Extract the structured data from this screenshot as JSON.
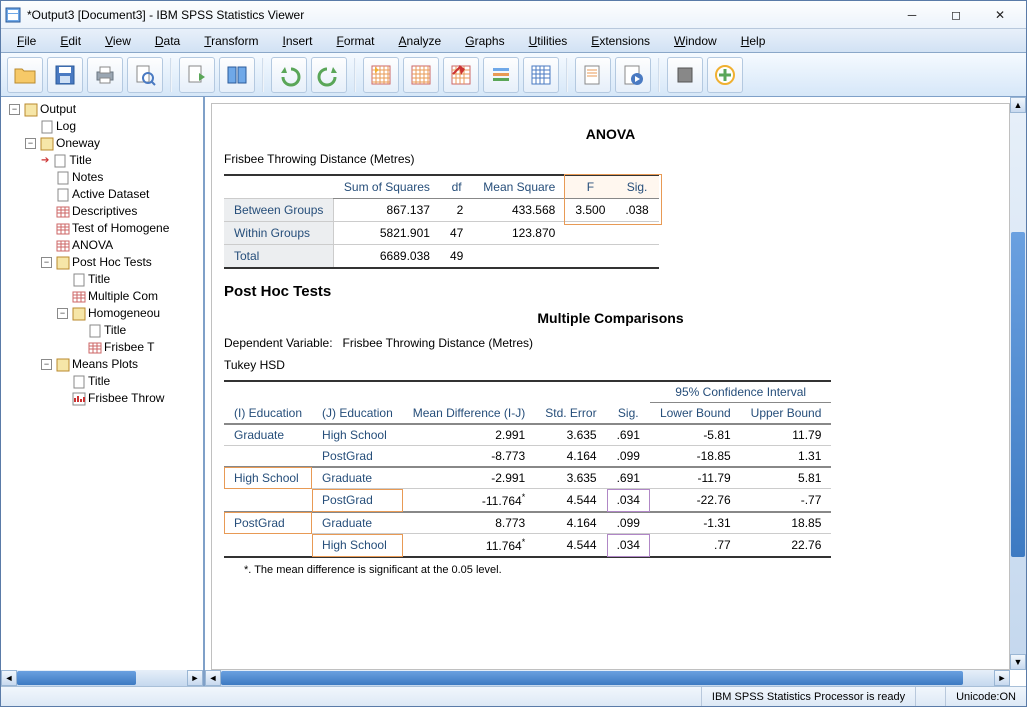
{
  "window": {
    "title": "*Output3 [Document3] - IBM SPSS Statistics Viewer"
  },
  "menus": [
    "File",
    "Edit",
    "View",
    "Data",
    "Transform",
    "Insert",
    "Format",
    "Analyze",
    "Graphs",
    "Utilities",
    "Extensions",
    "Window",
    "Help"
  ],
  "tree": {
    "root": "Output",
    "log": "Log",
    "oneway": "Oneway",
    "title": "Title",
    "notes": "Notes",
    "active": "Active Dataset",
    "desc": "Descriptives",
    "homo": "Test of Homogene",
    "anova": "ANOVA",
    "post": "Post Hoc Tests",
    "ptitle": "Title",
    "mult": "Multiple Com",
    "hsub": "Homogeneou",
    "htitle": "Title",
    "friz": "Frisbee T",
    "means": "Means Plots",
    "mtitle": "Title",
    "mfriz": "Frisbee Throw"
  },
  "anova": {
    "heading": "ANOVA",
    "caption": "Frisbee Throwing Distance (Metres)",
    "cols": [
      "Sum of Squares",
      "df",
      "Mean Square",
      "F",
      "Sig."
    ],
    "rows": [
      {
        "label": "Between Groups",
        "ss": "867.137",
        "df": "2",
        "ms": "433.568",
        "f": "3.500",
        "sig": ".038"
      },
      {
        "label": "Within Groups",
        "ss": "5821.901",
        "df": "47",
        "ms": "123.870",
        "f": "",
        "sig": ""
      },
      {
        "label": "Total",
        "ss": "6689.038",
        "df": "49",
        "ms": "",
        "f": "",
        "sig": ""
      }
    ]
  },
  "posthoc": {
    "heading": "Post Hoc Tests",
    "subheading": "Multiple Comparisons",
    "depvar_label": "Dependent Variable:",
    "depvar": "Frisbee Throwing Distance (Metres)",
    "method": "Tukey HSD",
    "ci_label": "95% Confidence Interval",
    "cols": {
      "i": "(I) Education",
      "j": "(J) Education",
      "md": "Mean Difference (I-J)",
      "se": "Std. Error",
      "sig": "Sig.",
      "lb": "Lower Bound",
      "ub": "Upper Bound"
    },
    "rows": [
      {
        "i": "Graduate",
        "j": "High School",
        "md": "2.991",
        "se": "3.635",
        "sig": ".691",
        "lb": "-5.81",
        "ub": "11.79",
        "star": false,
        "grouphead": true
      },
      {
        "i": "",
        "j": "PostGrad",
        "md": "-8.773",
        "se": "4.164",
        "sig": ".099",
        "lb": "-18.85",
        "ub": "1.31",
        "star": false
      },
      {
        "i": "High School",
        "j": "Graduate",
        "md": "-2.991",
        "se": "3.635",
        "sig": ".691",
        "lb": "-11.79",
        "ub": "5.81",
        "star": false,
        "grouphead": true,
        "hl_i": true
      },
      {
        "i": "",
        "j": "PostGrad",
        "md": "-11.764",
        "se": "4.544",
        "sig": ".034",
        "lb": "-22.76",
        "ub": "-.77",
        "star": true,
        "hl_j": true,
        "hl_sig": true
      },
      {
        "i": "PostGrad",
        "j": "Graduate",
        "md": "8.773",
        "se": "4.164",
        "sig": ".099",
        "lb": "-1.31",
        "ub": "18.85",
        "star": false,
        "grouphead": true,
        "hl_i": true
      },
      {
        "i": "",
        "j": "High School",
        "md": "11.764",
        "se": "4.544",
        "sig": ".034",
        "lb": ".77",
        "ub": "22.76",
        "star": true,
        "hl_j": true,
        "hl_sig": true
      }
    ],
    "footnote": "*. The mean difference is significant at the 0.05 level."
  },
  "status": {
    "processor": "IBM SPSS Statistics Processor is ready",
    "unicode": "Unicode:ON"
  },
  "colors": {
    "accent": "#264e7a",
    "orange": "#e89a55",
    "purple": "#b087c6",
    "scrollbar": "#3d7ac2"
  }
}
